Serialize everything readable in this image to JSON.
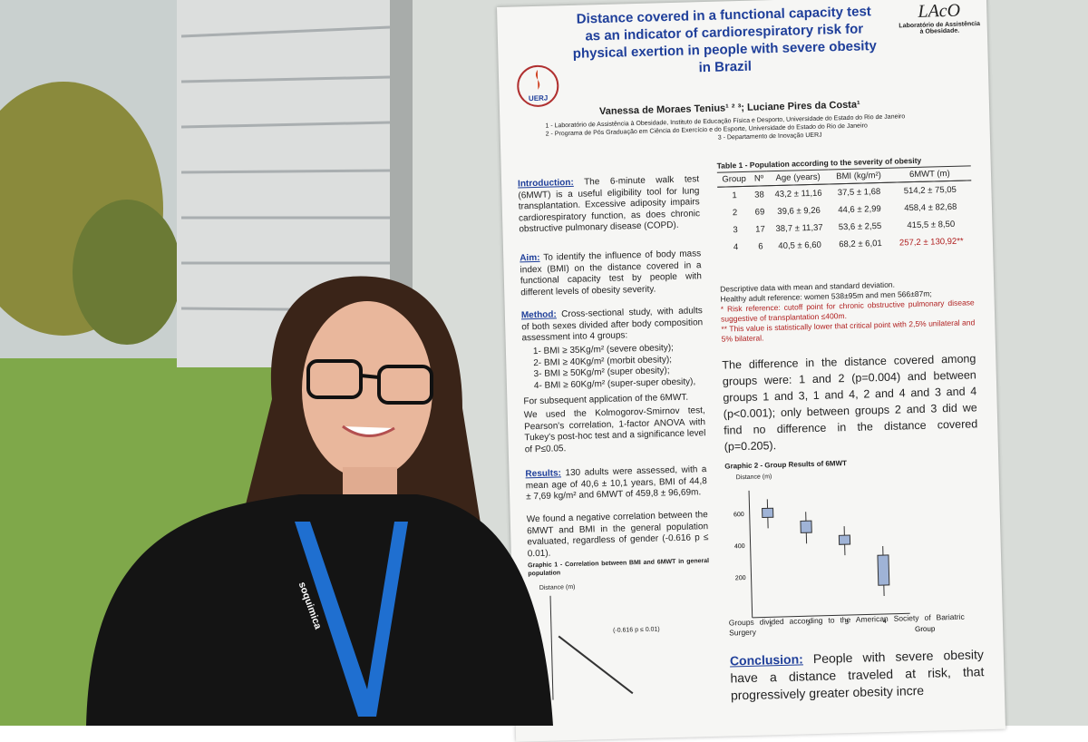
{
  "header": {
    "title": "Distance covered in a functional capacity test as an indicator of cardiorespiratory risk for physical exertion in people with severe obesity in Brazil",
    "authors": "Vanessa de Moraes Tenius¹ ² ³; Luciane Pires da Costa¹",
    "affiliations": [
      "1 - Laboratório de Assistência à Obesidade, Instituto de Educação Física e Desporto, Universidade do Estado do Rio de Janeiro",
      "2 - Programa de Pós Graduação em Ciência do Exercício e do Esporte, Universidade do Estado do Rio de Janeiro",
      "3 - Departamento de Inovação UERJ"
    ],
    "logo_left": "UERJ",
    "logo_right_mark": "LAcO",
    "logo_right": "Laboratório de Assistência à Obesidade."
  },
  "intro": {
    "heading": "Introduction:",
    "text": "The 6-minute walk test (6MWT) is a useful eligibility tool for lung transplantation. Excessive adiposity impairs cardiorespiratory function, as does chronic obstructive pulmonary disease (COPD)."
  },
  "aim": {
    "heading": "Aim:",
    "text": "To identify the influence of body mass index (BMI) on the distance covered in a functional capacity test by people with different levels of obesity severity."
  },
  "method": {
    "heading": "Method:",
    "text": "Cross-sectional study, with adults of both sexes divided after body composition assessment into 4 groups:",
    "items": [
      "1- BMI ≥ 35Kg/m² (severe obesity);",
      "2- BMI ≥ 40Kg/m² (morbit obesity);",
      "3- BMI ≥ 50Kg/m² (super obesity);",
      "4- BMI ≥ 60Kg/m² (super-super obesity),"
    ],
    "after": [
      "For subsequent application of the 6MWT.",
      "We used the Kolmogorov-Smirnov test, Pearson's correlation, 1-factor ANOVA with Tukey's post-hoc test and a significance level of P≤0.05."
    ]
  },
  "results": {
    "heading": "Results:",
    "paragraphs": [
      "130 adults were assessed, with a mean age of 40,6 ± 10,1 years, BMI of 44,8 ± 7,69 kg/m² and 6MWT of 459,8 ± 96,69m.",
      "We found a negative correlation between the 6MWT and BMI in the general population evaluated, regardless of gender (-0.616 p ≤ 0.01)."
    ]
  },
  "graphic1": {
    "title": "Graphic 1 - Correlation between BMI and 6MWT in general population",
    "y_label": "Distance (m)",
    "annotation": "(-0.616 p ≤ 0.01)"
  },
  "table": {
    "title": "Table 1 - Population according to the severity of obesity",
    "columns": [
      "Group",
      "Nº",
      "Age (years)",
      "BMI (kg/m²)",
      "6MWT (m)"
    ],
    "rows": [
      [
        "1",
        "38",
        "43,2 ± 11,16",
        "37,5 ± 1,68",
        "514,2 ± 75,05"
      ],
      [
        "2",
        "69",
        "39,6 ± 9,26",
        "44,6 ± 2,99",
        "458,4 ± 82,68"
      ],
      [
        "3",
        "17",
        "38,7 ± 11,37",
        "53,6 ± 2,55",
        "415,5 ± 8,50"
      ],
      [
        "4",
        "6",
        "40,5 ± 6,60",
        "68,2 ± 6,01",
        "257,2 ± 130,92**"
      ]
    ],
    "notes": [
      "Descriptive data with mean and standard deviation.",
      "Healthy adult reference: women 538±95m and men 566±87m;",
      "* Risk reference: cutoff point for chronic obstructive pulmonary disease suggestive of transplantation ≤400m.",
      "** This value is statistically lower that critical point with 2,5% unilateral and 5% bilateral."
    ]
  },
  "difference": "The difference in the distance covered among groups were: 1 and 2 (p=0.004) and between groups 1 and 3, 1 and 4, 2 and 4 and 3 and 4 (p<0.001); only between groups 2 and 3 did we find no difference in the distance covered (p=0.205).",
  "graphic2": {
    "title": "Graphic 2 - Group Results of 6MWT",
    "y_label": "Distance (m)",
    "yticks": [
      "600",
      "400",
      "200"
    ],
    "groups": [
      "1",
      "2",
      "3",
      "4"
    ],
    "x_label": "Group",
    "caption": "Groups divided according to the American Society of Bariatric Surgery"
  },
  "conclusion": {
    "heading": "Conclusion:",
    "text": "People with severe obesity have a distance traveled at risk, that progressively greater obesity incre"
  },
  "lanyard": "soquimica"
}
